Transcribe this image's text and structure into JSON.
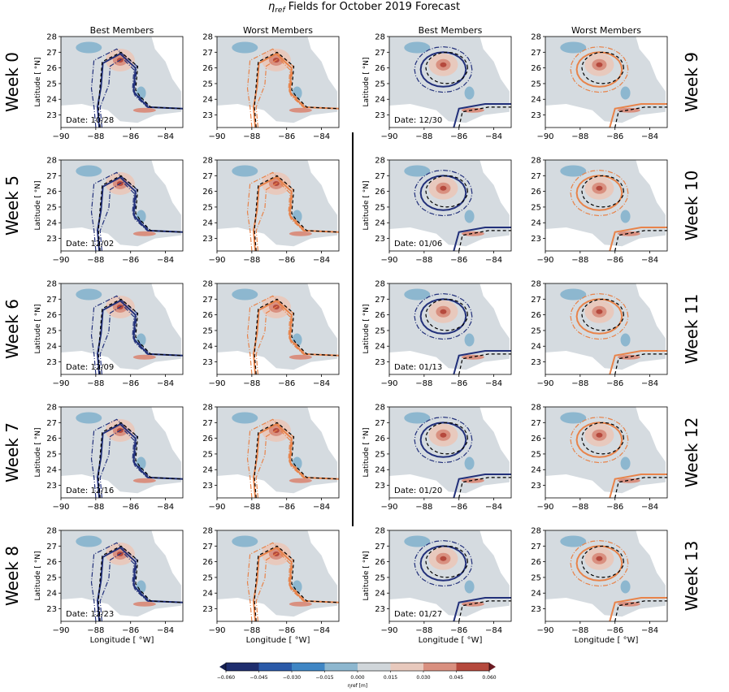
{
  "figure": {
    "title_symbol": "η",
    "title_subscript": "ref",
    "title_rest": " Fields for October 2019 Forecast"
  },
  "columns": [
    "Best Members",
    "Worst Members",
    "Best Members",
    "Worst Members"
  ],
  "weeks_left": [
    {
      "label": "Week 0",
      "date": "Date: 10/28"
    },
    {
      "label": "Week 5",
      "date": "Date: 12/02"
    },
    {
      "label": "Week 6",
      "date": "Date: 12/09"
    },
    {
      "label": "Week 7",
      "date": "Date: 12/16"
    },
    {
      "label": "Week 8",
      "date": "Date: 12/23"
    }
  ],
  "weeks_right": [
    {
      "label": "Week 9",
      "date": "Date: 12/30"
    },
    {
      "label": "Week 10",
      "date": "Date: 01/06"
    },
    {
      "label": "Week 11",
      "date": "Date: 01/13"
    },
    {
      "label": "Week 12",
      "date": "Date: 01/20"
    },
    {
      "label": "Week 13",
      "date": "Date: 01/27"
    }
  ],
  "axes": {
    "ylabel": "Latitude [ °N]",
    "xlabel": "Longitude [ °W]",
    "yticks": [
      "28",
      "27",
      "26",
      "25",
      "24",
      "23"
    ],
    "xticks": [
      "−90",
      "−88",
      "−86",
      "−84"
    ]
  },
  "colorbar": {
    "ticks": [
      "−0.060",
      "−0.045",
      "−0.030",
      "−0.015",
      "0.000",
      "0.015",
      "0.030",
      "0.045",
      "0.060"
    ],
    "label": "ηref [m]",
    "colors": [
      "#1f2e6e",
      "#2b5aa8",
      "#3f86c4",
      "#8db7cf",
      "#d0d6da",
      "#e8c9bd",
      "#d99080",
      "#b5493d",
      "#6b1a22"
    ]
  },
  "chart_data": {
    "type": "contour-map-grid",
    "title": "ηref Fields for October 2019 Forecast",
    "xlabel": "Longitude [ °W]",
    "ylabel": "Latitude [ °N]",
    "xlim": [
      -90,
      -83
    ],
    "ylim": [
      22.2,
      28
    ],
    "colorbar_range": [
      -0.06,
      0.06
    ],
    "colorbar_step": 0.015,
    "contour_colors": {
      "best": "#22307a",
      "worst": "#e8834a",
      "reference": "#000000"
    },
    "panels_left_best_worst": [
      "Week 0",
      "Week 5",
      "Week 6",
      "Week 7",
      "Week 8"
    ],
    "panels_right_best_worst": [
      "Week 9",
      "Week 10",
      "Week 11",
      "Week 12",
      "Week 13"
    ]
  }
}
